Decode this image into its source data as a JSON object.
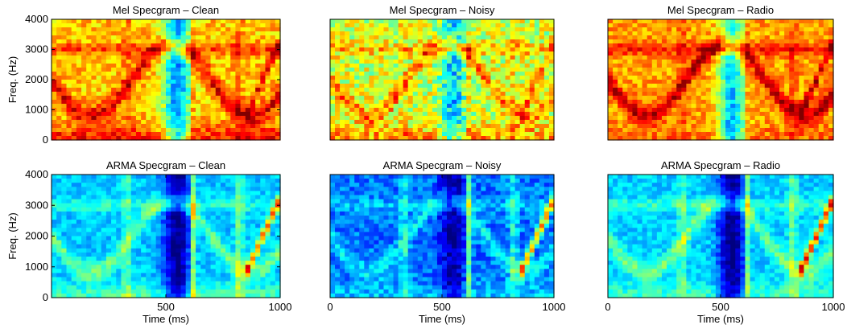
{
  "chart_data": [
    {
      "type": "heatmap",
      "title": "Mel Specgram – Clean",
      "xlabel": "",
      "ylabel": "Freq. (Hz)",
      "xlim": [
        0,
        1000
      ],
      "ylim": [
        0,
        4000
      ],
      "x_ticks": [],
      "y_ticks": [
        0,
        1000,
        2000,
        3000,
        4000
      ],
      "colormap": "jet",
      "tone": "hot"
    },
    {
      "type": "heatmap",
      "title": "Mel Specgram – Noisy",
      "xlabel": "",
      "ylabel": "",
      "xlim": [
        0,
        1000
      ],
      "ylim": [
        0,
        4000
      ],
      "x_ticks": [],
      "y_ticks": [],
      "colormap": "jet",
      "tone": "warm-noisy"
    },
    {
      "type": "heatmap",
      "title": "Mel Specgram – Radio",
      "xlabel": "",
      "ylabel": "",
      "xlim": [
        0,
        1000
      ],
      "ylim": [
        0,
        4000
      ],
      "x_ticks": [],
      "y_ticks": [],
      "colormap": "jet",
      "tone": "hot-radio"
    },
    {
      "type": "heatmap",
      "title": "ARMA Specgram – Clean",
      "xlabel": "Time (ms)",
      "ylabel": "Freq. (Hz)",
      "xlim": [
        0,
        1000
      ],
      "ylim": [
        0,
        4000
      ],
      "x_ticks": [
        500,
        1000
      ],
      "y_ticks": [
        0,
        1000,
        2000,
        3000,
        4000
      ],
      "colormap": "jet",
      "tone": "cool"
    },
    {
      "type": "heatmap",
      "title": "ARMA Specgram – Noisy",
      "xlabel": "Time (ms)",
      "ylabel": "",
      "xlim": [
        0,
        1000
      ],
      "ylim": [
        0,
        4000
      ],
      "x_ticks": [
        0,
        500,
        1000
      ],
      "y_ticks": [],
      "colormap": "jet",
      "tone": "cold-noisy"
    },
    {
      "type": "heatmap",
      "title": "ARMA Specgram – Radio",
      "xlabel": "Time (ms)",
      "ylabel": "",
      "xlim": [
        0,
        1000
      ],
      "ylim": [
        0,
        4000
      ],
      "x_ticks": [
        0,
        500,
        1000
      ],
      "y_ticks": [],
      "colormap": "jet",
      "tone": "cool-radio"
    }
  ]
}
